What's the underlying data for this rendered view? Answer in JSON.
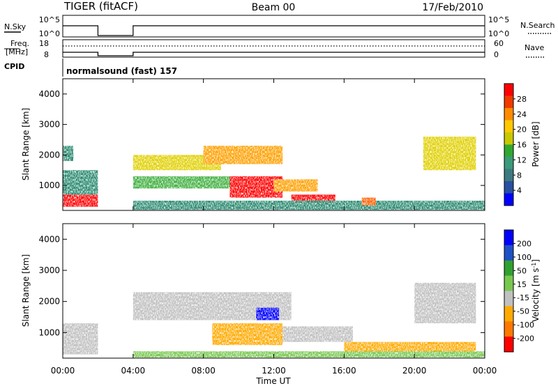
{
  "header": {
    "title": "TIGER (fitACF)",
    "beam": "Beam 00",
    "date": "17/Feb/2010"
  },
  "strips": {
    "nsky_label": "N.Sky",
    "nsearch_label": "N.Search",
    "freq_label_1": "Freq.",
    "freq_label_2": "[MHz]",
    "nave_label": "Nave",
    "cpid_label": "CPID",
    "cpid_text": "normalsound (fast) 157",
    "noise_ticks_left": [
      "10^5",
      "10^0"
    ],
    "noise_ticks_right": [
      "10^5",
      "10^0"
    ],
    "freq_ticks": [
      "18",
      "8"
    ],
    "nave_ticks": [
      "60",
      "0"
    ]
  },
  "colorbars": {
    "power": {
      "label": "Power [dB]",
      "ticks": [
        "28",
        "24",
        "20",
        "16",
        "12",
        "8",
        "4"
      ],
      "colors": [
        "#ff0000",
        "#f03a00",
        "#ff8c00",
        "#ffc800",
        "#c8c800",
        "#30a830",
        "#3a9a7a",
        "#3c7a80",
        "#2850a0",
        "#0000ff"
      ]
    },
    "velocity": {
      "label": "Velocity [m s^-1]",
      "ticks": [
        "200",
        "100",
        "50",
        "15",
        "-15",
        "-50",
        "-100",
        "-200"
      ],
      "colors": [
        "#0000ff",
        "#1e50c8",
        "#30a030",
        "#78c850",
        "#c0c0c0",
        "#ffaa00",
        "#ff7800",
        "#ff0000"
      ]
    }
  },
  "chart_data": [
    {
      "type": "heatmap",
      "title": "Power",
      "ylabel": "Slant Range [km]",
      "xlabel": "Time UT",
      "x_ticks": [
        "00:00",
        "04:00",
        "08:00",
        "12:00",
        "16:00",
        "20:00",
        "00:00"
      ],
      "y_ticks": [
        "1000",
        "2000",
        "3000",
        "4000"
      ],
      "xlim_hours": [
        0,
        24
      ],
      "ylim_km": [
        180,
        4500
      ],
      "colorbar": "Power [dB]",
      "data_gap_hours": [
        2.0,
        4.0
      ],
      "regions": [
        {
          "t": [
            0.0,
            2.0
          ],
          "range": [
            300,
            700
          ],
          "power_db": 28
        },
        {
          "t": [
            0.0,
            2.0
          ],
          "range": [
            700,
            1500
          ],
          "power_db": 10
        },
        {
          "t": [
            0.0,
            0.6
          ],
          "range": [
            1800,
            2300
          ],
          "power_db": 8
        },
        {
          "t": [
            4.0,
            9.0
          ],
          "range": [
            1500,
            2000
          ],
          "power_db": 18
        },
        {
          "t": [
            4.0,
            12.0
          ],
          "range": [
            900,
            1300
          ],
          "power_db": 14
        },
        {
          "t": [
            8.0,
            12.5
          ],
          "range": [
            1700,
            2300
          ],
          "power_db": 20
        },
        {
          "t": [
            9.5,
            12.5
          ],
          "range": [
            600,
            1300
          ],
          "power_db": 28
        },
        {
          "t": [
            12.0,
            14.5
          ],
          "range": [
            800,
            1200
          ],
          "power_db": 22
        },
        {
          "t": [
            13.0,
            15.5
          ],
          "range": [
            300,
            700
          ],
          "power_db": 28
        },
        {
          "t": [
            4.0,
            24.0
          ],
          "range": [
            200,
            500
          ],
          "power_db": 8
        },
        {
          "t": [
            20.5,
            23.5
          ],
          "range": [
            1500,
            2600
          ],
          "power_db": 18
        },
        {
          "t": [
            17.0,
            17.8
          ],
          "range": [
            350,
            600
          ],
          "power_db": 26
        }
      ]
    },
    {
      "type": "heatmap",
      "title": "Velocity",
      "ylabel": "Slant Range [km]",
      "xlabel": "Time UT",
      "x_ticks": [
        "00:00",
        "04:00",
        "08:00",
        "12:00",
        "16:00",
        "20:00",
        "00:00"
      ],
      "y_ticks": [
        "1000",
        "2000",
        "3000",
        "4000"
      ],
      "xlim_hours": [
        0,
        24
      ],
      "ylim_km": [
        180,
        4500
      ],
      "colorbar": "Velocity [m s^-1]",
      "data_gap_hours": [
        2.0,
        4.0
      ],
      "regions": [
        {
          "t": [
            0.0,
            2.0
          ],
          "range": [
            300,
            1300
          ],
          "velocity": 0
        },
        {
          "t": [
            4.0,
            13.0
          ],
          "range": [
            1400,
            2300
          ],
          "velocity": 0
        },
        {
          "t": [
            8.5,
            12.5
          ],
          "range": [
            600,
            1300
          ],
          "velocity": -30
        },
        {
          "t": [
            11.0,
            12.3
          ],
          "range": [
            1400,
            1800
          ],
          "velocity": 200
        },
        {
          "t": [
            12.5,
            16.5
          ],
          "range": [
            700,
            1200
          ],
          "velocity": 0
        },
        {
          "t": [
            16.0,
            23.5
          ],
          "range": [
            300,
            700
          ],
          "velocity": -30
        },
        {
          "t": [
            20.0,
            23.5
          ],
          "range": [
            1300,
            2600
          ],
          "velocity": 0
        },
        {
          "t": [
            4.0,
            24.0
          ],
          "range": [
            200,
            400
          ],
          "velocity": 15
        }
      ]
    }
  ]
}
